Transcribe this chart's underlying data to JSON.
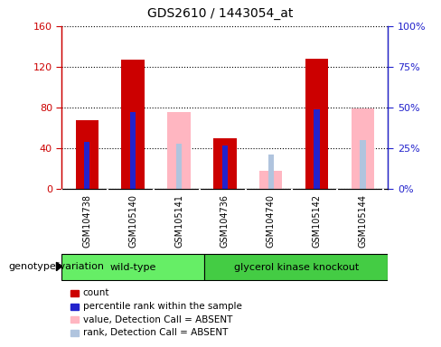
{
  "title": "GDS2610 / 1443054_at",
  "samples": [
    "GSM104738",
    "GSM105140",
    "GSM105141",
    "GSM104736",
    "GSM104740",
    "GSM105142",
    "GSM105144"
  ],
  "red_count": [
    68,
    127,
    0,
    50,
    0,
    128,
    0
  ],
  "blue_rank": [
    29,
    47,
    0,
    27,
    0,
    49,
    0
  ],
  "pink_value_absent": [
    0,
    0,
    76,
    0,
    18,
    0,
    79
  ],
  "lightblue_rank_absent": [
    0,
    0,
    28,
    0,
    21,
    0,
    30
  ],
  "absent_flags": [
    false,
    false,
    true,
    false,
    true,
    false,
    true
  ],
  "wt_indices": [
    0,
    1,
    2
  ],
  "ko_indices": [
    3,
    4,
    5,
    6
  ],
  "ylim_left": [
    0,
    160
  ],
  "ylim_right": [
    0,
    100
  ],
  "yticks_left": [
    0,
    40,
    80,
    120,
    160
  ],
  "yticks_right": [
    0,
    25,
    50,
    75,
    100
  ],
  "yticklabels_left": [
    "0",
    "40",
    "80",
    "120",
    "160"
  ],
  "yticklabels_right": [
    "0%",
    "25%",
    "50%",
    "75%",
    "100%"
  ],
  "red_color": "#cc0000",
  "blue_color": "#2222cc",
  "pink_color": "#ffb6c1",
  "lightblue_color": "#b0c4de",
  "cell_bg": "#c8c8c8",
  "wt_color": "#66dd66",
  "ko_color": "#44cc44",
  "legend_items": [
    {
      "label": "count",
      "color": "#cc0000"
    },
    {
      "label": "percentile rank within the sample",
      "color": "#2222cc"
    },
    {
      "label": "value, Detection Call = ABSENT",
      "color": "#ffb6c1"
    },
    {
      "label": "rank, Detection Call = ABSENT",
      "color": "#b0c4de"
    }
  ]
}
